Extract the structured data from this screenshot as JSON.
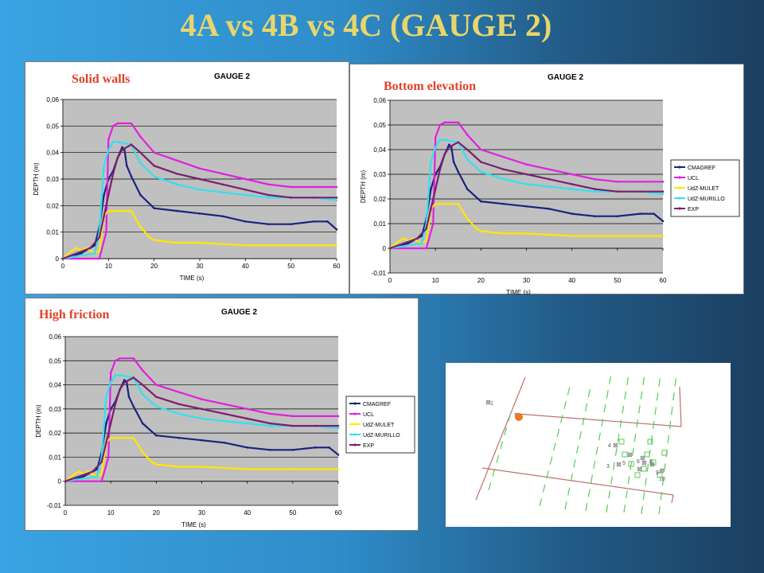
{
  "slide": {
    "title": "4A vs 4B vs 4C (GAUGE 2)",
    "title_color": "#e8d66c"
  },
  "panels": [
    {
      "label": "Solid walls",
      "legend": false
    },
    {
      "label": "Bottom elevation",
      "legend": true
    },
    {
      "label": "High friction",
      "legend": true
    }
  ],
  "label_color": "#e0412a",
  "chart_data": [
    {
      "type": "line",
      "title": "GAUGE 2",
      "xlabel": "TIME (s)",
      "ylabel": "DEPTH (m)",
      "xlim": [
        0,
        60
      ],
      "ylim": [
        0,
        0.06
      ],
      "xticks": [
        "0",
        "10",
        "20",
        "30",
        "40",
        "50",
        "60"
      ],
      "yticks": [
        "0",
        "0,01",
        "0,02",
        "0,03",
        "0,04",
        "0,05",
        "0,06"
      ],
      "grid": true,
      "legend_position": "none",
      "series": [
        {
          "name": "CMAGREF",
          "color": "#1a237e",
          "x": [
            0,
            4,
            7,
            8,
            9,
            10,
            11,
            12,
            13,
            13.5,
            14,
            15,
            17,
            20,
            25,
            30,
            35,
            40,
            45,
            50,
            55,
            58,
            60
          ],
          "y": [
            0,
            0.002,
            0.005,
            0.012,
            0.024,
            0.03,
            0.033,
            0.038,
            0.042,
            0.041,
            0.035,
            0.031,
            0.024,
            0.019,
            0.018,
            0.017,
            0.016,
            0.014,
            0.013,
            0.013,
            0.014,
            0.014,
            0.011
          ]
        },
        {
          "name": "UCL",
          "color": "#e020e0",
          "x": [
            0,
            8,
            9.5,
            10,
            11,
            12,
            15,
            17,
            20,
            25,
            30,
            35,
            40,
            45,
            50,
            55,
            60
          ],
          "y": [
            0,
            0,
            0.01,
            0.045,
            0.05,
            0.051,
            0.051,
            0.046,
            0.04,
            0.037,
            0.034,
            0.032,
            0.03,
            0.028,
            0.027,
            0.027,
            0.027
          ]
        },
        {
          "name": "UdZ-MULET",
          "color": "#ffe800",
          "x": [
            0,
            2,
            3,
            4,
            5,
            6,
            7,
            8,
            9,
            10,
            11,
            15,
            17,
            19,
            20,
            25,
            30,
            40,
            50,
            60
          ],
          "y": [
            0,
            0.003,
            0.004,
            0.003,
            0.004,
            0.003,
            0.002,
            0.003,
            0.016,
            0.018,
            0.018,
            0.018,
            0.012,
            0.008,
            0.007,
            0.006,
            0.006,
            0.005,
            0.005,
            0.005
          ]
        },
        {
          "name": "UdZ-MURILLO",
          "color": "#33e0f0",
          "x": [
            0,
            7,
            8,
            9,
            10,
            11,
            12,
            15,
            17,
            20,
            25,
            30,
            35,
            40,
            45,
            50,
            55,
            60
          ],
          "y": [
            0,
            0.002,
            0.01,
            0.035,
            0.041,
            0.044,
            0.044,
            0.043,
            0.036,
            0.031,
            0.028,
            0.026,
            0.025,
            0.024,
            0.023,
            0.023,
            0.023,
            0.022
          ]
        },
        {
          "name": "EXP",
          "color": "#7b1f6e",
          "x": [
            0,
            6,
            8,
            9,
            10,
            11,
            12,
            13,
            15,
            17,
            20,
            25,
            30,
            35,
            40,
            45,
            50,
            55,
            60
          ],
          "y": [
            0,
            0.004,
            0.008,
            0.016,
            0.024,
            0.032,
            0.038,
            0.041,
            0.043,
            0.04,
            0.035,
            0.032,
            0.03,
            0.028,
            0.026,
            0.024,
            0.023,
            0.023,
            0.023
          ]
        }
      ]
    },
    {
      "type": "line",
      "title": "GAUGE 2",
      "xlabel": "TIME (s)",
      "ylabel": "DEPTH (m)",
      "xlim": [
        0,
        60
      ],
      "ylim": [
        -0.01,
        0.06
      ],
      "xticks": [
        "0",
        "10",
        "20",
        "30",
        "40",
        "50",
        "60"
      ],
      "yticks": [
        "-0,01",
        "0",
        "0,01",
        "0,02",
        "0,03",
        "0,04",
        "0,05",
        "0,06"
      ],
      "grid": true,
      "legend_position": "right",
      "series": [
        {
          "name": "CMAGREF",
          "color": "#1a237e",
          "x": [
            0,
            4,
            7,
            8,
            9,
            10,
            11,
            12,
            13,
            13.5,
            14,
            15,
            17,
            20,
            25,
            30,
            35,
            40,
            45,
            50,
            55,
            58,
            60
          ],
          "y": [
            0,
            0.002,
            0.005,
            0.012,
            0.024,
            0.03,
            0.033,
            0.038,
            0.042,
            0.041,
            0.035,
            0.031,
            0.024,
            0.019,
            0.018,
            0.017,
            0.016,
            0.014,
            0.013,
            0.013,
            0.014,
            0.014,
            0.011
          ]
        },
        {
          "name": "UCL",
          "color": "#e020e0",
          "x": [
            0,
            8,
            9.5,
            10,
            11,
            12,
            15,
            17,
            20,
            25,
            30,
            35,
            40,
            45,
            50,
            55,
            60
          ],
          "y": [
            0,
            0,
            0.01,
            0.045,
            0.05,
            0.051,
            0.051,
            0.046,
            0.04,
            0.037,
            0.034,
            0.032,
            0.03,
            0.028,
            0.027,
            0.027,
            0.027
          ]
        },
        {
          "name": "UdZ-MULET",
          "color": "#ffe800",
          "x": [
            0,
            2,
            3,
            4,
            5,
            6,
            7,
            8,
            9,
            10,
            11,
            15,
            17,
            19,
            20,
            25,
            30,
            40,
            50,
            60
          ],
          "y": [
            0,
            0.003,
            0.004,
            0.003,
            0.004,
            0.003,
            0.002,
            0.003,
            0.016,
            0.018,
            0.018,
            0.018,
            0.012,
            0.008,
            0.007,
            0.006,
            0.006,
            0.005,
            0.005,
            0.005
          ]
        },
        {
          "name": "UdZ-MURILLO",
          "color": "#33e0f0",
          "x": [
            0,
            7,
            8,
            9,
            10,
            11,
            12,
            15,
            17,
            20,
            25,
            30,
            35,
            40,
            45,
            50,
            55,
            60
          ],
          "y": [
            0,
            0.002,
            0.01,
            0.035,
            0.041,
            0.044,
            0.044,
            0.043,
            0.036,
            0.031,
            0.028,
            0.026,
            0.025,
            0.024,
            0.023,
            0.023,
            0.023,
            0.022
          ]
        },
        {
          "name": "EXP",
          "color": "#7b1f6e",
          "x": [
            0,
            6,
            8,
            9,
            10,
            11,
            12,
            13,
            15,
            17,
            20,
            25,
            30,
            35,
            40,
            45,
            50,
            55,
            60
          ],
          "y": [
            0,
            0.004,
            0.008,
            0.016,
            0.024,
            0.032,
            0.038,
            0.041,
            0.043,
            0.04,
            0.035,
            0.032,
            0.03,
            0.028,
            0.026,
            0.024,
            0.023,
            0.023,
            0.023
          ]
        }
      ]
    },
    {
      "type": "line",
      "title": "GAUGE 2",
      "xlabel": "TIME (s)",
      "ylabel": "DEPTH (m)",
      "xlim": [
        0,
        60
      ],
      "ylim": [
        -0.01,
        0.06
      ],
      "xticks": [
        "0",
        "10",
        "20",
        "30",
        "40",
        "50",
        "60"
      ],
      "yticks": [
        "-0,01",
        "0",
        "0,01",
        "0,02",
        "0,03",
        "0,04",
        "0,05",
        "0,06"
      ],
      "grid": true,
      "legend_position": "right",
      "series": [
        {
          "name": "CMAGREF",
          "color": "#1a237e",
          "x": [
            0,
            4,
            7,
            8,
            9,
            10,
            11,
            12,
            13,
            13.5,
            14,
            15,
            17,
            20,
            25,
            30,
            35,
            40,
            45,
            50,
            55,
            58,
            60
          ],
          "y": [
            0,
            0.002,
            0.005,
            0.012,
            0.024,
            0.03,
            0.033,
            0.038,
            0.042,
            0.041,
            0.035,
            0.031,
            0.024,
            0.019,
            0.018,
            0.017,
            0.016,
            0.014,
            0.013,
            0.013,
            0.014,
            0.014,
            0.011
          ]
        },
        {
          "name": "UCL",
          "color": "#e020e0",
          "x": [
            0,
            8,
            9.5,
            10,
            11,
            12,
            15,
            17,
            20,
            25,
            30,
            35,
            40,
            45,
            50,
            55,
            60
          ],
          "y": [
            0,
            0,
            0.01,
            0.045,
            0.05,
            0.051,
            0.051,
            0.046,
            0.04,
            0.037,
            0.034,
            0.032,
            0.03,
            0.028,
            0.027,
            0.027,
            0.027
          ]
        },
        {
          "name": "UdZ-MULET",
          "color": "#ffe800",
          "x": [
            0,
            2,
            3,
            4,
            5,
            6,
            7,
            8,
            9,
            10,
            11,
            15,
            17,
            19,
            20,
            25,
            30,
            40,
            50,
            60
          ],
          "y": [
            0,
            0.003,
            0.004,
            0.003,
            0.004,
            0.003,
            0.002,
            0.003,
            0.016,
            0.018,
            0.018,
            0.018,
            0.012,
            0.008,
            0.007,
            0.006,
            0.006,
            0.005,
            0.005,
            0.005
          ]
        },
        {
          "name": "UdZ-MURILLO",
          "color": "#33e0f0",
          "x": [
            0,
            7,
            8,
            9,
            10,
            11,
            12,
            15,
            17,
            20,
            25,
            30,
            35,
            40,
            45,
            50,
            55,
            60
          ],
          "y": [
            0,
            0.002,
            0.01,
            0.035,
            0.041,
            0.044,
            0.044,
            0.043,
            0.036,
            0.031,
            0.028,
            0.026,
            0.025,
            0.024,
            0.023,
            0.023,
            0.023,
            0.022
          ]
        },
        {
          "name": "EXP",
          "color": "#7b1f6e",
          "x": [
            0,
            6,
            8,
            9,
            10,
            11,
            12,
            13,
            15,
            17,
            20,
            25,
            30,
            35,
            40,
            45,
            50,
            55,
            60
          ],
          "y": [
            0,
            0.004,
            0.008,
            0.016,
            0.024,
            0.032,
            0.038,
            0.041,
            0.043,
            0.04,
            0.035,
            0.032,
            0.03,
            0.028,
            0.026,
            0.024,
            0.023,
            0.023,
            0.023
          ]
        }
      ]
    }
  ],
  "gauge_map": {
    "labels": [
      "1",
      "4",
      "5",
      "3",
      "6",
      "8",
      "9",
      "10"
    ]
  }
}
